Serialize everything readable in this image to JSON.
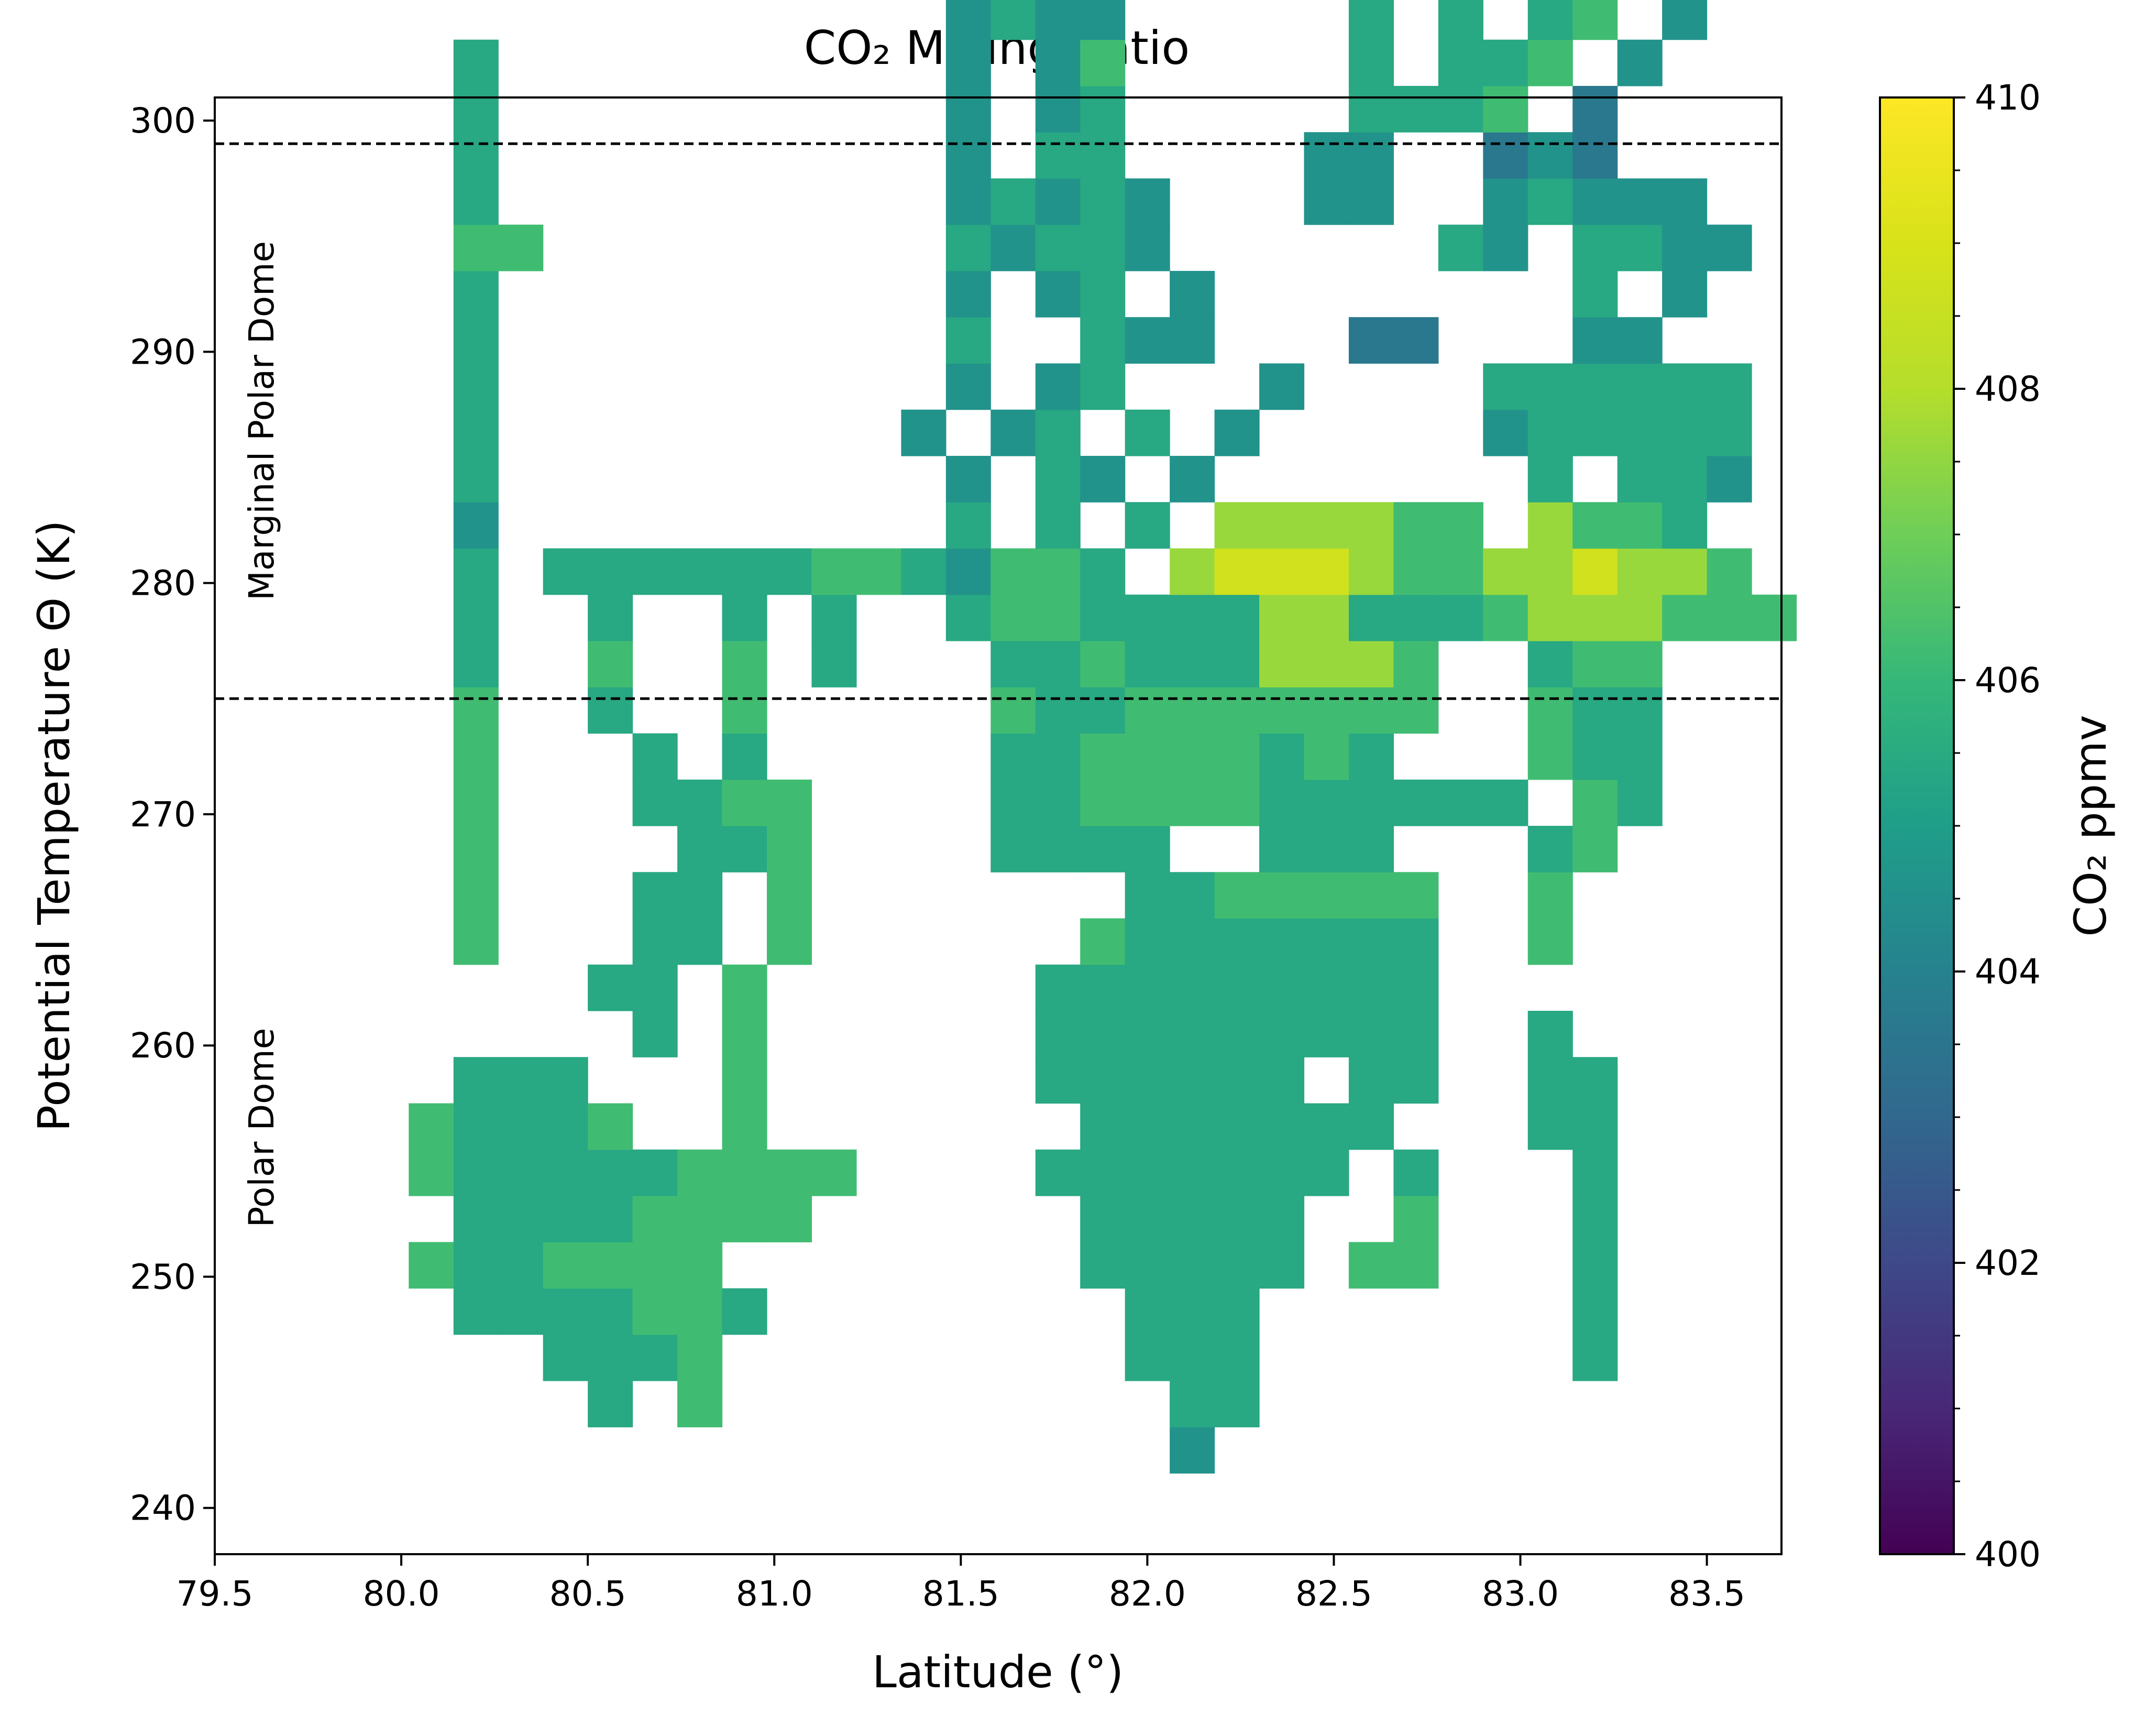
{
  "chart_data": {
    "type": "heatmap",
    "title": "CO₂ Mixing Ratio",
    "xlabel": "Latitude (°)",
    "ylabel": "Potential Temperature Θ (K)",
    "xlim": [
      79.5,
      83.7
    ],
    "ylim": [
      238,
      301
    ],
    "x_ticks": [
      79.5,
      80.0,
      80.5,
      81.0,
      81.5,
      82.0,
      82.5,
      83.0,
      83.5
    ],
    "x_tick_labels": [
      "79.5",
      "80.0",
      "80.5",
      "81.0",
      "81.5",
      "82.0",
      "82.5",
      "83.0",
      "83.5"
    ],
    "y_ticks": [
      240,
      250,
      260,
      270,
      280,
      290,
      300
    ],
    "y_tick_labels": [
      "240",
      "250",
      "260",
      "270",
      "280",
      "290",
      "300"
    ],
    "colorbar": {
      "label": "CO₂ ppmv",
      "range": [
        400,
        410
      ],
      "ticks": [
        400,
        402,
        404,
        406,
        408,
        410
      ],
      "tick_labels": [
        "400",
        "402",
        "404",
        "406",
        "408",
        "410"
      ],
      "colormap": "viridis"
    },
    "reference_lines": [
      {
        "y": 299,
        "style": "dashed"
      },
      {
        "y": 275,
        "style": "dashed"
      }
    ],
    "annotations": [
      {
        "text": "Marginal Polar Dome"
      },
      {
        "text": "Polar Dome"
      }
    ],
    "grid": false,
    "cells": {
      "x_start": 79.9,
      "x_step": 0.12,
      "y_bottom": 241.5,
      "y_step": 2,
      "rows": [
        "    a             4           ",
        "   aa5 6          55          ",
        "  aa5556         555       5  ",
        "  5555665        555       5  ",
        " 6556666        55555 66   5  ",
        "  55556666      55555  6   5  ",
        " 6555556666    5555555 5   5  ",
        " 65556  6       5555555   55  ",
        "  555   6      555555 55  55  ",
        "      5 6      555555555  5  ",
        "     55 6      555555555     ",
        "  6   55 6      65555555  6  ",
        "  6   55 6       5566666  6  ",
        "  6    556    5555  555   56  ",
        "  6   5566    556666555555 65 ",
        "  6   5 5     556666565   655 ",
        "  6  5  6     6556666666  655 ",
        "  5  6  6 5   5565557776  566 ",
        "  5  5  5 5  5665555775556777666",
        "  5 5555556654665 7888766778776",
        "  4          5 5 5 777766 7665",
        "  5          4 54 4       5 554",
        "  5         4 45 5 4     455555",
        "  5          4 45   4    555555",
        "  5          5  544   33   44  ",
        "  5          4 45 4        5 4",
        "  66         54554      54 5544",
        "  5          45454   44  45444",
        "  5          4 55    44  343 ",
        "  5          4 45     5556 3  ",
        "  5          4 46     5 556 4 ",
        "             4544     5 5 56 4",
        "              44         56 44",
        "              4           5 44",
        "                           555",
        "                           556"
      ],
      "values": {
        "3": 403.6,
        "4": 404.6,
        "5": 405.4,
        "6": 406.2,
        "7": 407.6,
        "8": 408.8
      }
    }
  }
}
